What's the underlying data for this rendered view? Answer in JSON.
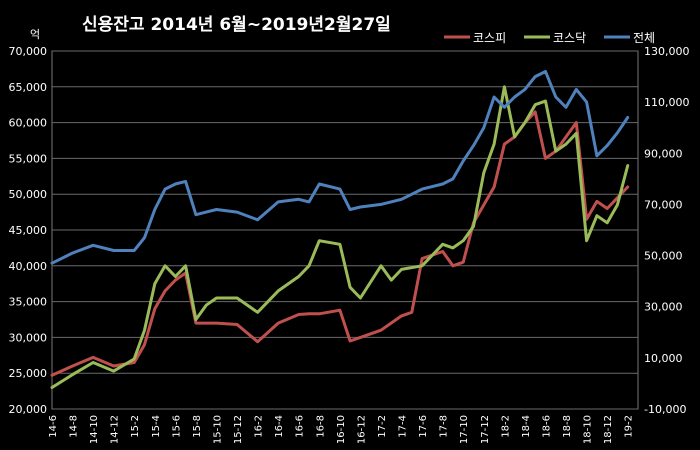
{
  "chart_data": {
    "type": "line",
    "title": "신용잔고 2014년 6월~2019년2월27일",
    "y_unit": "억",
    "y_left": {
      "min": 20000,
      "max": 70000,
      "ticks": [
        "20,000",
        "25,000",
        "30,000",
        "35,000",
        "40,000",
        "45,000",
        "50,000",
        "55,000",
        "60,000",
        "65,000",
        "70,000"
      ]
    },
    "y_right": {
      "min": -10000,
      "max": 130000,
      "ticks": [
        "-10,000",
        "10,000",
        "30,000",
        "50,000",
        "70,000",
        "90,000",
        "110,000",
        "130,000"
      ]
    },
    "x_ticks": [
      "14-6",
      "14-8",
      "14-10",
      "14-12",
      "15-2",
      "15-4",
      "15-6",
      "15-8",
      "15-10",
      "15-12",
      "16-2",
      "16-4",
      "16-6",
      "16-8",
      "16-10",
      "16-12",
      "17-2",
      "17-4",
      "17-6",
      "17-8",
      "17-10",
      "17-12",
      "18-2",
      "18-4",
      "18-6",
      "18-8",
      "18-10",
      "18-12",
      "19-2"
    ],
    "grid": true,
    "legend_position": "top-right",
    "series": [
      {
        "name": "코스피",
        "color": "#c0504d",
        "axis": "left",
        "x": [
          "14-6",
          "14-8",
          "14-10",
          "14-12",
          "15-2",
          "15-3",
          "15-4",
          "15-5",
          "15-6",
          "15-7",
          "15-8",
          "15-10",
          "15-12",
          "16-2",
          "16-4",
          "16-6",
          "16-7",
          "16-8",
          "16-10",
          "16-11",
          "16-12",
          "17-2",
          "17-4",
          "17-5",
          "17-6",
          "17-8",
          "17-9",
          "17-10",
          "17-11",
          "17-12",
          "18-1",
          "18-2",
          "18-3",
          "18-4",
          "18-5",
          "18-6",
          "18-7",
          "18-8",
          "18-9",
          "18-10",
          "18-11",
          "18-12",
          "19-1",
          "19-2"
        ],
        "values": [
          24700,
          26000,
          27200,
          26000,
          26500,
          29000,
          34000,
          36500,
          38000,
          39000,
          32000,
          32000,
          31800,
          29400,
          32000,
          33200,
          33300,
          33300,
          33800,
          29500,
          30000,
          31000,
          33000,
          33500,
          41000,
          42000,
          40000,
          40500,
          46000,
          48500,
          51000,
          57000,
          58000,
          60000,
          61500,
          55000,
          56000,
          58000,
          60000,
          46500,
          49000,
          48000,
          49500,
          51000
        ]
      },
      {
        "name": "코스닥",
        "color": "#9bbb59",
        "axis": "left",
        "x": [
          "14-6",
          "14-8",
          "14-10",
          "14-12",
          "15-2",
          "15-3",
          "15-4",
          "15-5",
          "15-6",
          "15-7",
          "15-8",
          "15-9",
          "15-10",
          "15-12",
          "16-2",
          "16-4",
          "16-6",
          "16-7",
          "16-8",
          "16-10",
          "16-11",
          "16-12",
          "17-2",
          "17-3",
          "17-4",
          "17-6",
          "17-8",
          "17-9",
          "17-10",
          "17-11",
          "17-12",
          "18-1",
          "18-2",
          "18-3",
          "18-4",
          "18-5",
          "18-6",
          "18-7",
          "18-8",
          "18-9",
          "18-10",
          "18-11",
          "18-12",
          "19-1",
          "19-2"
        ],
        "values": [
          23000,
          24800,
          26500,
          25300,
          27000,
          31000,
          37500,
          40000,
          38500,
          40000,
          32500,
          34500,
          35500,
          35500,
          33500,
          36500,
          38500,
          40000,
          43500,
          43000,
          37000,
          35500,
          40000,
          38000,
          39500,
          40000,
          43000,
          42500,
          43500,
          45500,
          53000,
          57000,
          65000,
          58000,
          60000,
          62500,
          63000,
          56000,
          57000,
          58500,
          43500,
          47000,
          46000,
          48500,
          54000
        ]
      },
      {
        "name": "전체",
        "color": "#4f81bd",
        "axis": "right",
        "x": [
          "14-6",
          "14-8",
          "14-10",
          "14-12",
          "15-2",
          "15-3",
          "15-4",
          "15-5",
          "15-6",
          "15-7",
          "15-8",
          "15-9",
          "15-10",
          "15-12",
          "16-2",
          "16-4",
          "16-6",
          "16-7",
          "16-8",
          "16-10",
          "16-11",
          "16-12",
          "17-2",
          "17-4",
          "17-6",
          "17-8",
          "17-9",
          "17-10",
          "17-11",
          "17-12",
          "18-1",
          "18-2",
          "18-3",
          "18-4",
          "18-5",
          "18-6",
          "18-7",
          "18-8",
          "18-9",
          "18-10",
          "18-11",
          "18-12",
          "19-1",
          "19-2"
        ],
        "values": [
          47000,
          51000,
          54000,
          52000,
          52000,
          57000,
          68000,
          76000,
          78000,
          79000,
          66000,
          67000,
          68000,
          67000,
          64000,
          71000,
          72000,
          71000,
          78000,
          76000,
          68000,
          69000,
          70000,
          72000,
          76000,
          78000,
          80000,
          87000,
          93000,
          100000,
          112000,
          108000,
          112000,
          115000,
          120000,
          122000,
          112000,
          108000,
          115000,
          110000,
          89000,
          93000,
          98000,
          104000
        ]
      }
    ]
  }
}
